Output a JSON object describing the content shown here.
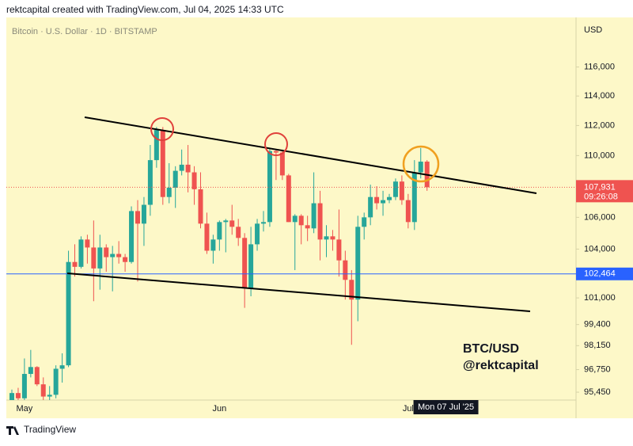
{
  "header": "rektcapital created with TradingView.com, Jul 04, 2025 14:33 UTC",
  "footer": "TradingView",
  "chart_data": {
    "type": "candlestick",
    "legend": "Bitcoin · U.S. Dollar · 1D · BITSTAMP",
    "currency": "USD",
    "categories": [
      null,
      null,
      "May",
      null,
      null,
      null,
      null,
      null,
      null,
      null,
      null,
      null,
      null,
      null,
      null,
      null,
      null,
      null,
      null,
      null,
      null,
      null,
      null,
      null,
      null,
      null,
      null,
      null,
      null,
      null,
      null,
      null,
      null,
      "Jun",
      null,
      null,
      null,
      null,
      null,
      null,
      null,
      null,
      null,
      null,
      null,
      null,
      null,
      null,
      null,
      null,
      null,
      null,
      null,
      null,
      null,
      null,
      null,
      null,
      null,
      null,
      null,
      null,
      null,
      "Jul",
      null,
      null,
      null
    ],
    "open": [
      94900,
      95400,
      95100,
      96500,
      96900,
      95900,
      95200,
      95300,
      96800,
      97000,
      103200,
      102900,
      104600,
      104100,
      102800,
      104100,
      103500,
      103700,
      103500,
      103200,
      106400,
      105600,
      106800,
      109700,
      111700,
      107300,
      107900,
      109000,
      109400,
      108900,
      107800,
      105600,
      103900,
      104600,
      105700,
      105800,
      105400,
      104700,
      101600,
      104300,
      105600,
      105700,
      110300,
      110200,
      108700,
      105700,
      106100,
      105500,
      105300,
      106900,
      104600,
      104800,
      104600,
      103300,
      102100,
      100900,
      105400,
      106000,
      107300,
      106900,
      107100,
      107300,
      108300,
      107100,
      105700,
      108900,
      109600
    ],
    "high": [
      95600,
      95700,
      97400,
      97900,
      96950,
      96300,
      95800,
      97000,
      97700,
      103900,
      104300,
      104800,
      104900,
      105800,
      104900,
      104300,
      104200,
      104500,
      103700,
      106700,
      107100,
      107300,
      110700,
      111900,
      111900,
      109500,
      109300,
      110400,
      110700,
      109300,
      108900,
      106300,
      104900,
      105800,
      105900,
      106800,
      105900,
      105000,
      105400,
      105900,
      106400,
      110500,
      110400,
      110400,
      108800,
      106200,
      106200,
      106100,
      108900,
      107700,
      105500,
      105200,
      106500,
      103900,
      102700,
      106100,
      106300,
      108100,
      108000,
      107700,
      107500,
      108500,
      108700,
      107500,
      109700,
      110500,
      109700
    ],
    "low": [
      94700,
      94900,
      95000,
      96300,
      95800,
      95000,
      94900,
      95100,
      96000,
      96900,
      102300,
      102800,
      103100,
      100800,
      101500,
      102600,
      101400,
      103100,
      102600,
      103100,
      102000,
      104200,
      106100,
      109200,
      106800,
      106900,
      106600,
      108700,
      107600,
      106800,
      105300,
      103700,
      103100,
      103900,
      103800,
      104900,
      104200,
      100400,
      101100,
      103900,
      105100,
      105400,
      108400,
      108400,
      105700,
      102700,
      104300,
      104500,
      105000,
      103300,
      103500,
      103900,
      102300,
      100900,
      98200,
      99600,
      104600,
      105500,
      106500,
      106100,
      106900,
      107100,
      106800,
      105300,
      105200,
      108500,
      107700
    ],
    "close": [
      95400,
      95100,
      96500,
      96900,
      95900,
      95200,
      95300,
      96800,
      97000,
      103200,
      102900,
      104600,
      104100,
      102800,
      104100,
      103500,
      103700,
      103500,
      103200,
      106400,
      105600,
      106800,
      109700,
      111700,
      107300,
      107900,
      109000,
      109400,
      108900,
      107800,
      105600,
      103900,
      104600,
      105700,
      105800,
      105400,
      104700,
      101600,
      104300,
      105600,
      105700,
      110300,
      110200,
      108700,
      105700,
      106100,
      105500,
      105300,
      106900,
      104600,
      104800,
      104600,
      103300,
      102100,
      100900,
      105400,
      106000,
      107300,
      106900,
      107100,
      107300,
      108300,
      107100,
      105700,
      108900,
      109600,
      107931
    ],
    "up_color": "#26a69a",
    "down_color": "#ef5350",
    "log_scale": true,
    "grid": false,
    "ylim": [
      95000,
      119500
    ],
    "yticks": [
      {
        "value": 116000,
        "label": "116,000"
      },
      {
        "value": 114000,
        "label": "114,000"
      },
      {
        "value": 112000,
        "label": "112,000"
      },
      {
        "value": 110000,
        "label": "110,000"
      },
      {
        "value": 106000,
        "label": "106,000"
      },
      {
        "value": 104000,
        "label": "104,000"
      },
      {
        "value": 101000,
        "label": "101,000"
      },
      {
        "value": 99400,
        "label": "99,400"
      },
      {
        "value": 98150,
        "label": "98,150"
      },
      {
        "value": 96750,
        "label": "96,750"
      },
      {
        "value": 95450,
        "label": "95,450"
      }
    ],
    "ref_line": {
      "value": 102464,
      "label": "102,464",
      "color": "#2962ff"
    },
    "last_price_label": "107,931",
    "countdown": "09:26:08",
    "crosshair_label": "Mon 07 Jul '25",
    "annotation": [
      "BTC/USD",
      "@rektcapital"
    ]
  }
}
